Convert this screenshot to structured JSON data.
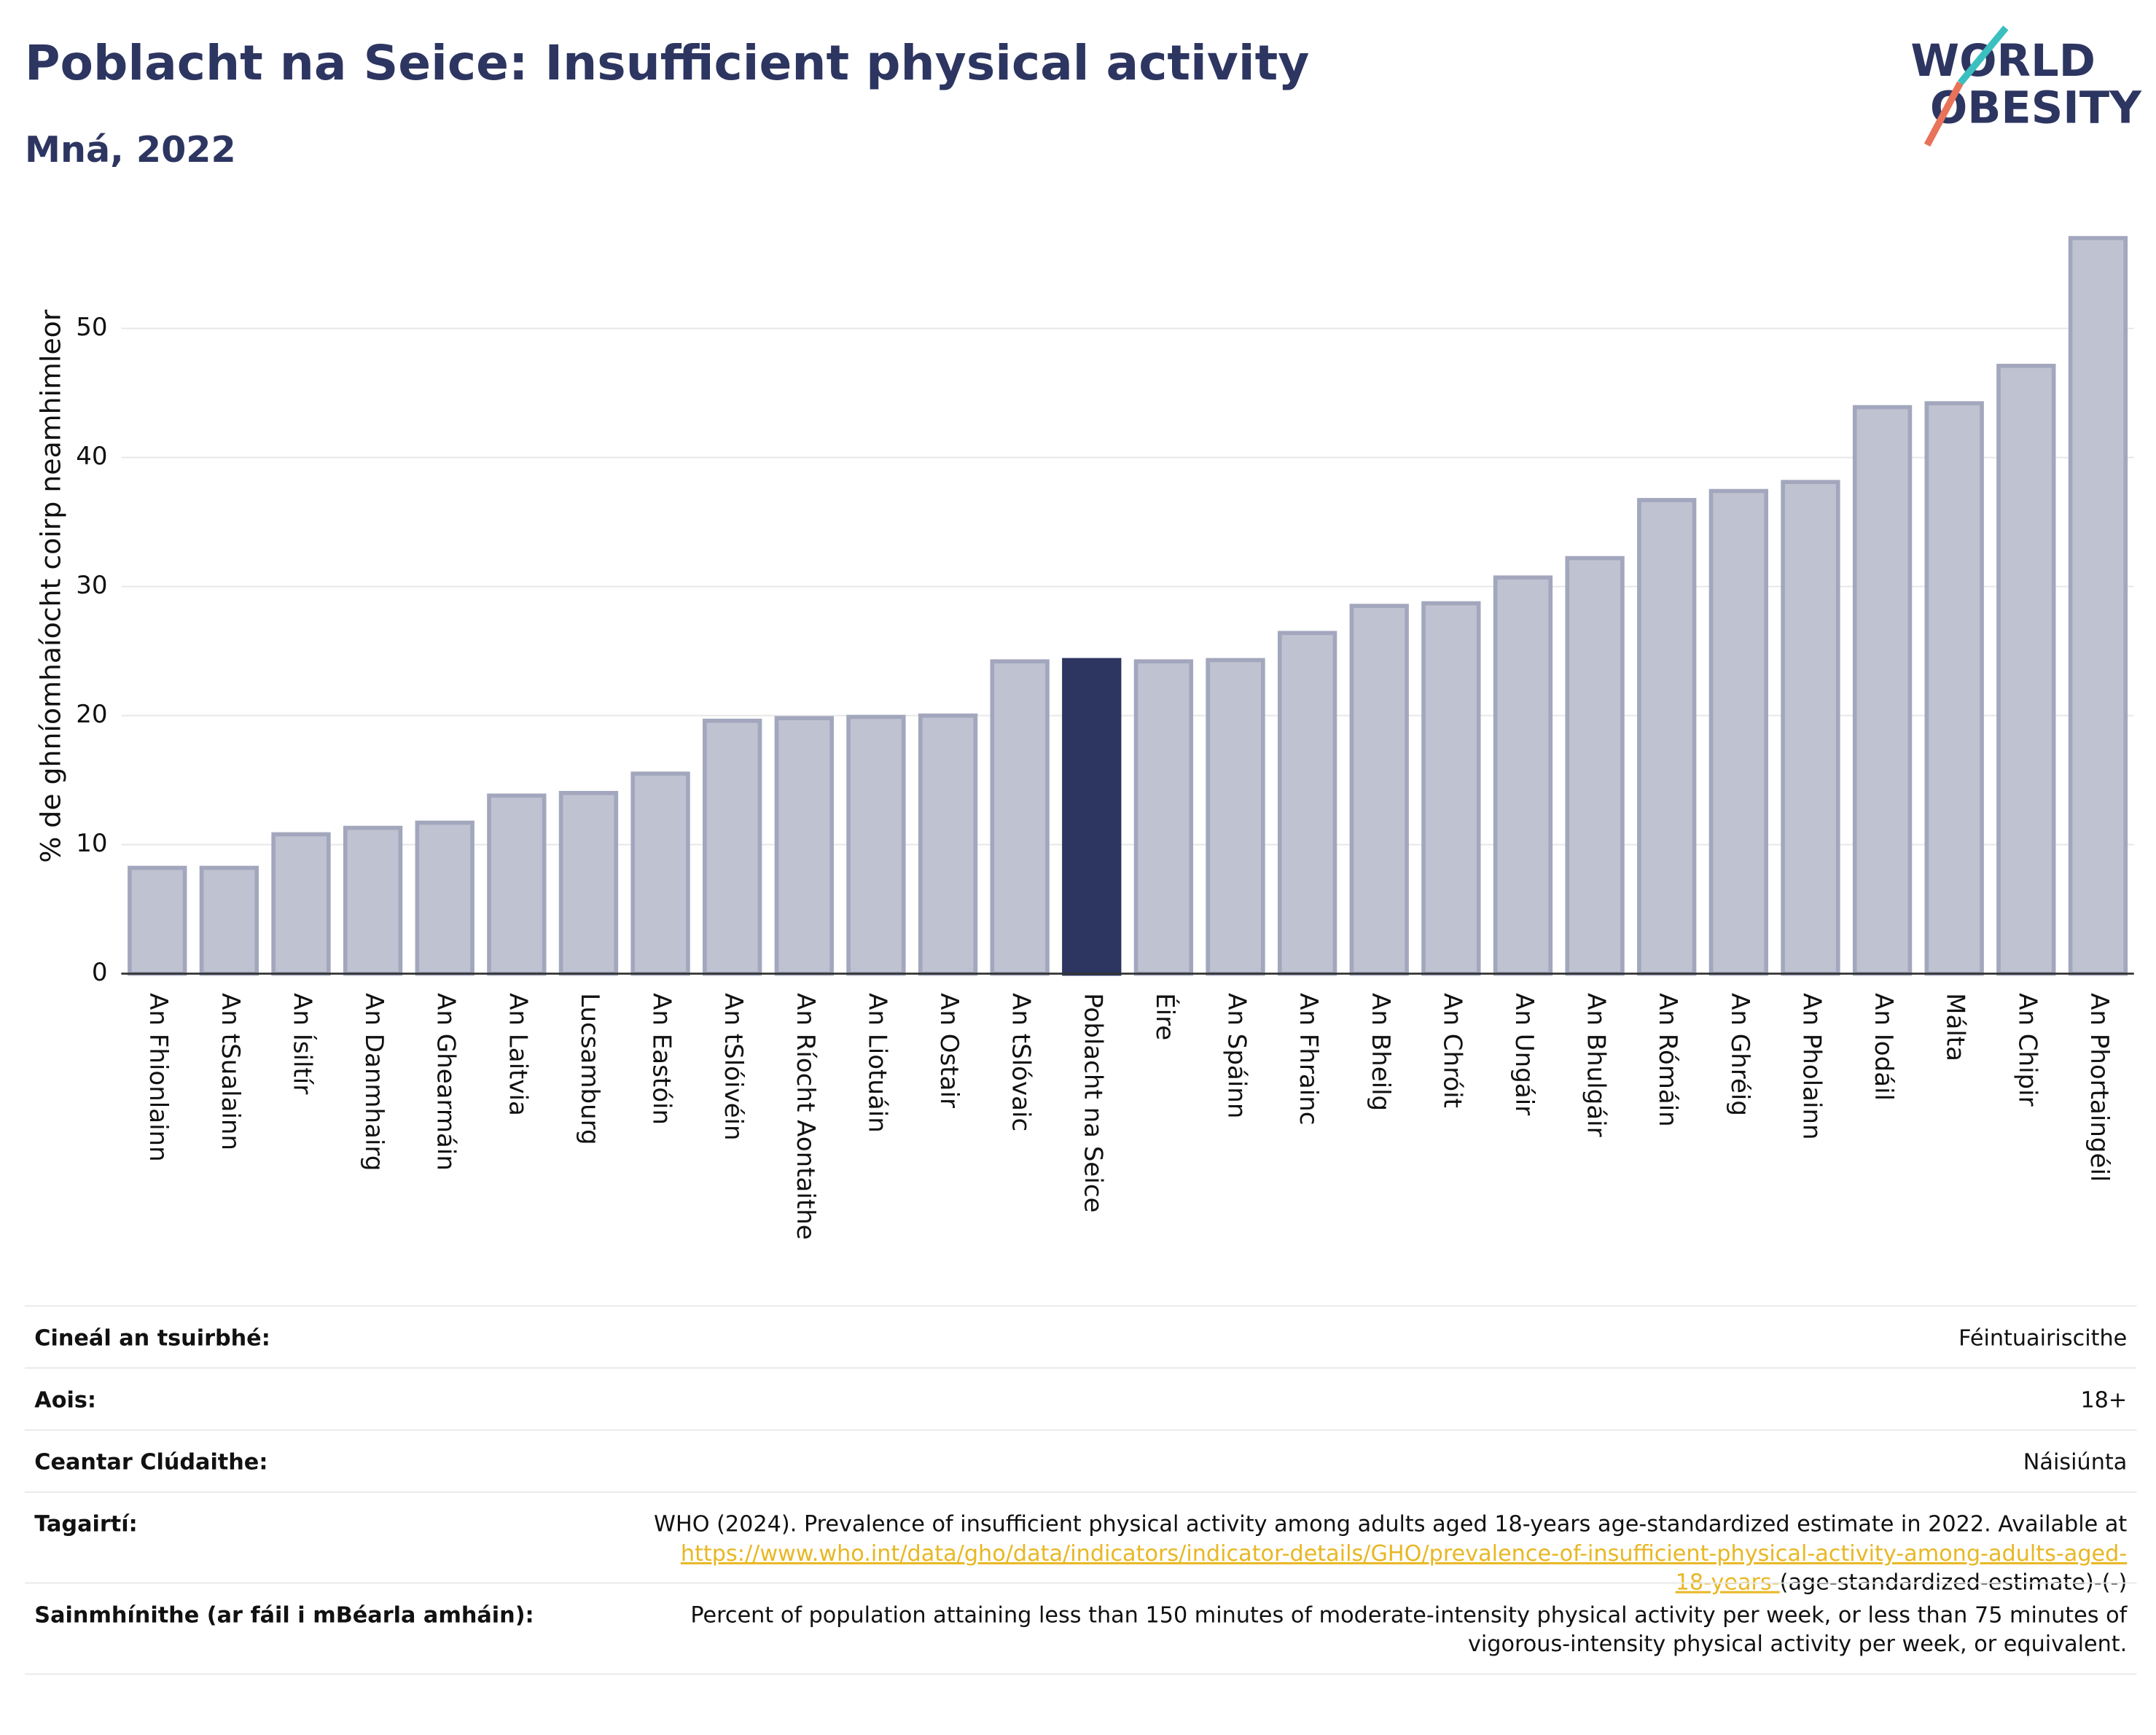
{
  "chart_data": {
    "type": "bar",
    "title": "Poblacht na Seice: Insufficient physical activity",
    "subtitle": "Mná, 2022",
    "logo": [
      "WORLD",
      "OBESITY"
    ],
    "y_label": "% de ghníomhaíocht coirp neamhimleor",
    "categories": [
      "An Fhionlainn",
      "An tSualainn",
      "An Ísiltír",
      "An Danmhairg",
      "An Ghearmáin",
      "An Laitvia",
      "Lucsamburg",
      "An Eastóin",
      "An tSlóivéin",
      "An Ríocht Aontaithe",
      "An Liotuáin",
      "An Ostair",
      "An tSlóvaic",
      "Poblacht na Seice",
      "Éire",
      "An Spáinn",
      "An Fhrainc",
      "An Bheilg",
      "An Chróit",
      "An Ungáir",
      "An Bhulgáir",
      "An Rómáin",
      "An Ghréig",
      "An Pholainn",
      "An Iodáil",
      "Málta",
      "An Chipir",
      "An Phortaingéil"
    ],
    "values": [
      8.2,
      8.2,
      10.8,
      11.3,
      11.7,
      13.8,
      14.0,
      15.5,
      19.6,
      19.8,
      19.9,
      20.0,
      24.2,
      24.3,
      24.2,
      24.3,
      26.4,
      28.5,
      28.7,
      30.7,
      32.2,
      36.7,
      37.4,
      38.1,
      43.9,
      44.2,
      47.1,
      57.0
    ],
    "colors": [
      "#bfc2d0",
      "#bfc2d0",
      "#bfc2d0",
      "#bfc2d0",
      "#bfc2d0",
      "#bfc2d0",
      "#bfc2d0",
      "#bfc2d0",
      "#bfc2d0",
      "#bfc2d0",
      "#bfc2d0",
      "#bfc2d0",
      "#bfc2d0",
      "#2d3561",
      "#bfc2d0",
      "#bfc2d0",
      "#bfc2d0",
      "#bfc2d0",
      "#bfc2d0",
      "#bfc2d0",
      "#bfc2d0",
      "#bfc2d0",
      "#bfc2d0",
      "#bfc2d0",
      "#bfc2d0",
      "#bfc2d0",
      "#bfc2d0",
      "#bfc2d0"
    ],
    "ylim": [
      0,
      57.8
    ],
    "yticks": [
      0,
      10,
      20,
      30,
      40,
      50
    ],
    "grid": true
  },
  "table": {
    "rows": [
      {
        "label": "Cineál an tsuirbhé:",
        "value": [
          "Féintuairiscithe"
        ]
      },
      {
        "label": "Aois:",
        "value": [
          "18+"
        ]
      },
      {
        "label": "Ceantar Clúdaithe:",
        "value": [
          "Náisiúnta"
        ]
      },
      {
        "label": "Tagairtí:",
        "value": [
          "WHO (2024). Prevalence of insufficient physical activity among adults aged 18-years age-standardized estimate in 2022. Available at"
        ],
        "link": [
          "https://www.who.int/data/gho/data/indicators/indicator-details/GHO/prevalence-of-insufficient-physical-activity-among-adults-aged-",
          "18-years-"
        ],
        "suffix": "(age-standardized-estimate)-(-)"
      },
      {
        "label": "Sainmhínithe (ar fáil i mBéarla amháin):",
        "value": [
          "Percent of population attaining less than 150 minutes of moderate-intensity physical activity per week, or less than 75 minutes of",
          "vigorous-intensity physical activity per week, or equivalent."
        ]
      }
    ]
  }
}
